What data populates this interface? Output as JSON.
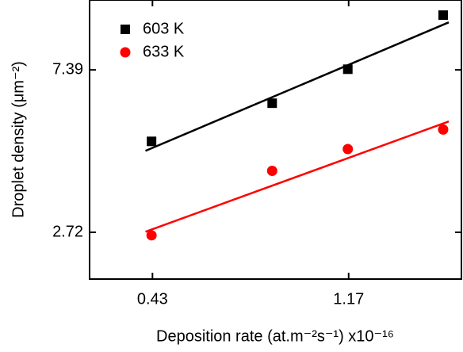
{
  "chart_data": {
    "type": "scatter",
    "log_x": true,
    "log_y": true,
    "xlabel": "Deposition rate (at.m⁻²s⁻¹) x10⁻¹⁶",
    "ylabel": "Droplet density (μm⁻²)",
    "xlim": [
      0.312,
      2.08
    ],
    "ylim": [
      2.04,
      11.36
    ],
    "xticks": [
      0.43,
      1.17
    ],
    "yticks": [
      2.72,
      7.39
    ],
    "legend": "upper left",
    "series": [
      {
        "name": "603 K",
        "color": "#000000",
        "marker": "square",
        "x": [
          0.428,
          0.792,
          1.165,
          1.895
        ],
        "values": [
          4.76,
          6.02,
          7.42,
          10.35
        ]
      },
      {
        "name": "633 K",
        "color": "#ff0000",
        "marker": "circle",
        "x": [
          0.428,
          0.792,
          1.165,
          1.895
        ],
        "values": [
          2.67,
          3.97,
          4.54,
          5.12
        ]
      }
    ],
    "fit_lines": [
      {
        "color": "#000000",
        "x": [
          0.415,
          1.95
        ],
        "values": [
          4.49,
          9.9
        ]
      },
      {
        "color": "#ff0000",
        "x": [
          0.415,
          1.95
        ],
        "values": [
          2.73,
          5.38
        ]
      }
    ]
  }
}
